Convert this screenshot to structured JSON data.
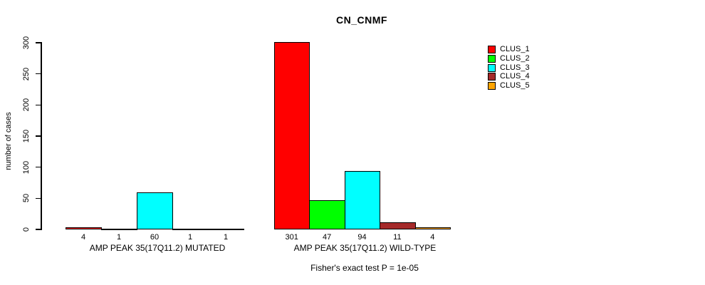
{
  "chart_data": {
    "type": "bar",
    "title": "CN_CNMF",
    "ylabel": "number of cases",
    "xlabel": "",
    "ylim": [
      0,
      300
    ],
    "yticks": [
      0,
      50,
      100,
      150,
      200,
      250,
      300
    ],
    "grid": false,
    "legend_position": "right-top",
    "categories": [
      "AMP PEAK 35(17Q11.2) MUTATED",
      "AMP PEAK 35(17Q11.2) WILD-TYPE"
    ],
    "series": [
      {
        "name": "CLUS_1",
        "color": "#FF0000",
        "values": [
          4,
          301
        ]
      },
      {
        "name": "CLUS_2",
        "color": "#00FF00",
        "values": [
          1,
          47
        ]
      },
      {
        "name": "CLUS_3",
        "color": "#00FFFF",
        "values": [
          60,
          94
        ]
      },
      {
        "name": "CLUS_4",
        "color": "#A52A2A",
        "values": [
          1,
          11
        ]
      },
      {
        "name": "CLUS_5",
        "color": "#FFA500",
        "values": [
          1,
          4
        ]
      }
    ],
    "bar_value_labels": [
      [
        "4",
        "1",
        "60",
        "1",
        "1"
      ],
      [
        "301",
        "47",
        "94",
        "11",
        "4"
      ]
    ],
    "annotation": "Fisher's exact test P = 1e-05"
  }
}
